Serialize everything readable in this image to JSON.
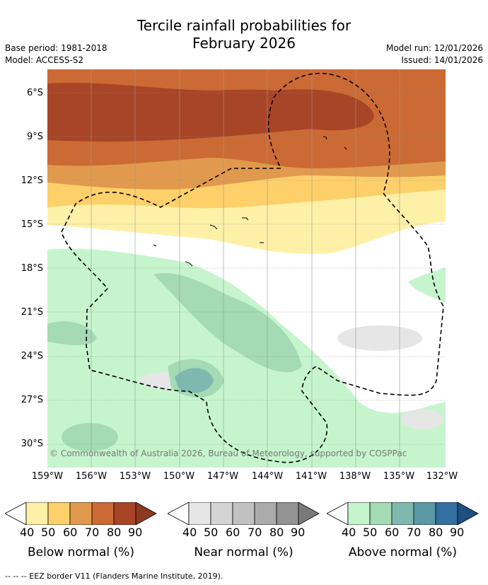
{
  "title_line1": "Tercile rainfall probabilities for",
  "title_line2": "February 2026",
  "base_period": "Base period: 1981-2018",
  "model": "Model: ACCESS-S2",
  "model_run": "Model run: 12/01/2026",
  "issued": "Issued: 14/01/2026",
  "copyright": "© Commonwealth of Australia 2026, Bureau of Meteorology, supported by COSPPac",
  "lat_labels": [
    "6°S",
    "9°S",
    "12°S",
    "15°S",
    "18°S",
    "21°S",
    "24°S",
    "27°S",
    "30°S"
  ],
  "lon_labels": [
    "159°W",
    "156°W",
    "153°W",
    "150°W",
    "147°W",
    "144°W",
    "141°W",
    "138°W",
    "135°W",
    "132°W"
  ],
  "legend": {
    "ticks": [
      "40",
      "50",
      "60",
      "70",
      "80",
      "90"
    ],
    "below_title": "Below normal (%)",
    "near_title": "Near normal (%)",
    "above_title": "Above normal (%)",
    "below_colors": [
      "#fff0a8",
      "#fdd06a",
      "#e19a4d",
      "#cc6a35",
      "#a84526"
    ],
    "near_colors": [
      "#e6e6e6",
      "#d4d4d4",
      "#c1c1c1",
      "#ababab",
      "#939393"
    ],
    "above_colors": [
      "#c6f5cd",
      "#a4dab4",
      "#7fb8ae",
      "#5a99a5",
      "#336fa0"
    ]
  },
  "eez_note": "--  --  -- EEZ border V11 (Flanders Marine Institute, 2019)."
}
